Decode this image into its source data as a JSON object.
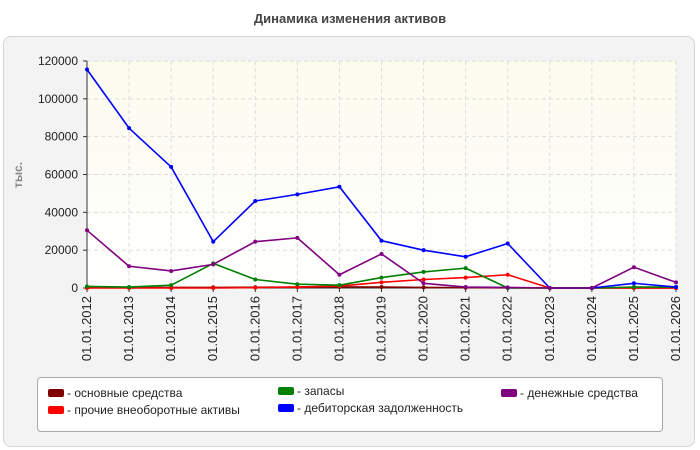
{
  "chart_data": {
    "type": "line",
    "title": "Динамика изменения активов",
    "ylabel": "тыс.",
    "xlabel": "",
    "ylim": [
      0,
      120000
    ],
    "yticks": [
      0,
      20000,
      40000,
      60000,
      80000,
      100000,
      120000
    ],
    "x": [
      "01.01.2012",
      "01.01.2013",
      "01.01.2014",
      "01.01.2015",
      "01.01.2016",
      "01.01.2017",
      "01.01.2018",
      "01.01.2019",
      "01.01.2020",
      "01.01.2021",
      "01.01.2022",
      "01.01.2023",
      "01.01.2024",
      "01.01.2025",
      "01.01.2026"
    ],
    "grid": true,
    "legend_position": "bottom",
    "series": [
      {
        "name": "основные средства",
        "color": "#800000",
        "values": [
          200,
          200,
          300,
          300,
          400,
          500,
          600,
          500,
          300,
          200,
          100,
          0,
          0,
          0,
          0
        ]
      },
      {
        "name": "прочие внеоборотные активы",
        "color": "#ff0000",
        "values": [
          0,
          0,
          0,
          0,
          200,
          500,
          1000,
          3000,
          4500,
          5500,
          7000,
          0,
          0,
          0,
          0
        ]
      },
      {
        "name": "запасы",
        "color": "#008000",
        "values": [
          800,
          500,
          1500,
          13000,
          4500,
          2000,
          1500,
          5500,
          8500,
          10500,
          0,
          0,
          0,
          500,
          500
        ]
      },
      {
        "name": "дебиторская задолженность",
        "color": "#0000ff",
        "values": [
          115500,
          84500,
          64000,
          24500,
          46000,
          49500,
          53500,
          25000,
          20000,
          16500,
          23500,
          0,
          0,
          2500,
          500
        ]
      },
      {
        "name": "денежные средства",
        "color": "#800080",
        "values": [
          30500,
          11500,
          9000,
          12500,
          24500,
          26500,
          7000,
          18000,
          2500,
          500,
          300,
          0,
          0,
          11000,
          3000
        ]
      }
    ]
  }
}
